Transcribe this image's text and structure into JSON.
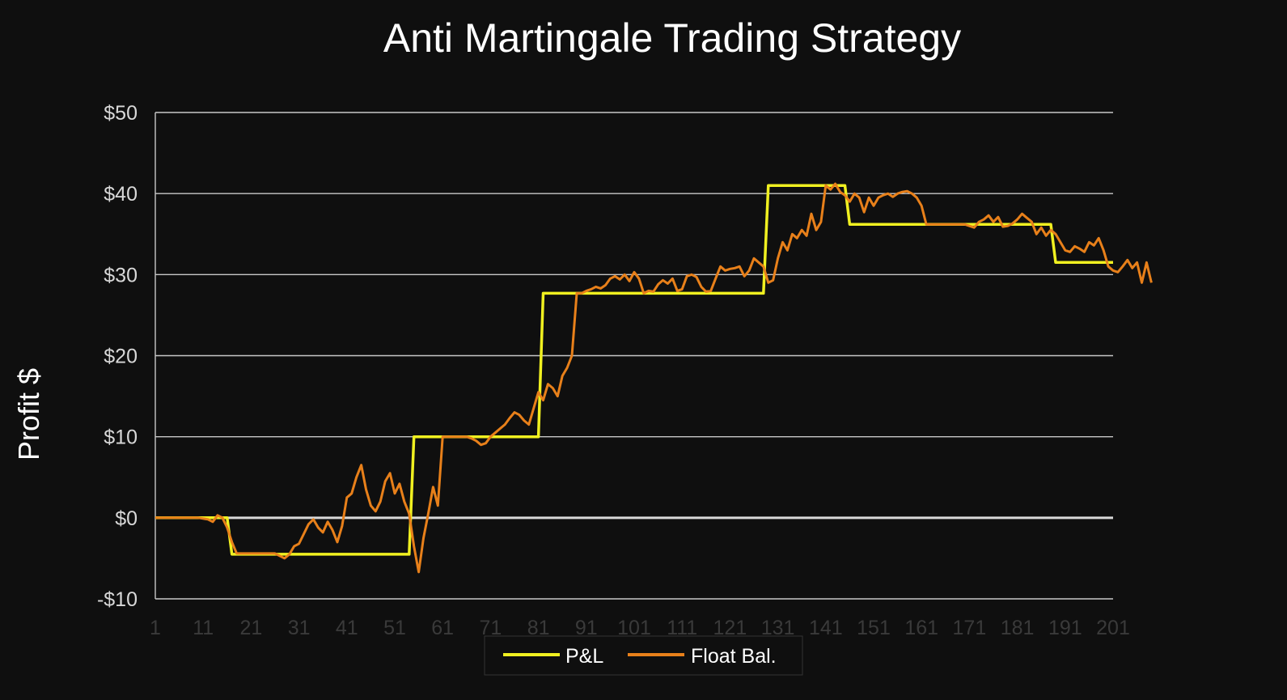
{
  "colors": {
    "background": "#0f0f0f",
    "gridline": "#c8c8c8",
    "zero_line": "#d9d9d9",
    "tick_label": "#d8d8d8",
    "negative_tick_label": "#ff0000",
    "x_tick_label": "#3a3a3a"
  },
  "chart_data": {
    "type": "line",
    "title": "Anti Martingale Trading Strategy",
    "xlabel": "",
    "ylabel": "Profit $",
    "xlim": [
      1,
      201
    ],
    "ylim": [
      -10,
      50
    ],
    "grid": true,
    "legend_position": "bottom-center",
    "y_ticks": [
      {
        "value": 50,
        "label": "$50",
        "negative": false
      },
      {
        "value": 40,
        "label": "$40",
        "negative": false
      },
      {
        "value": 30,
        "label": "$30",
        "negative": false
      },
      {
        "value": 20,
        "label": "$20",
        "negative": false
      },
      {
        "value": 10,
        "label": "$10",
        "negative": false
      },
      {
        "value": 0,
        "label": "$0",
        "negative": false
      },
      {
        "value": -10,
        "label": "-$10",
        "negative": true
      }
    ],
    "x_tick_labels": [
      "1",
      "11",
      "21",
      "31",
      "41",
      "51",
      "61",
      "71",
      "81",
      "91",
      "101",
      "111",
      "121",
      "131",
      "141",
      "151",
      "161",
      "171",
      "181",
      "191",
      "201"
    ],
    "series": [
      {
        "name": "P&L",
        "color": "#f0f020",
        "points": [
          [
            1,
            0
          ],
          [
            16,
            0
          ],
          [
            17,
            -4.5
          ],
          [
            54,
            -4.5
          ],
          [
            55,
            10
          ],
          [
            81,
            10
          ],
          [
            82,
            27.7
          ],
          [
            128,
            27.7
          ],
          [
            129,
            41
          ],
          [
            145,
            41
          ],
          [
            146,
            36.2
          ],
          [
            188,
            36.2
          ],
          [
            189,
            31.5
          ],
          [
            201,
            31.5
          ]
        ]
      },
      {
        "name": "Float Bal.",
        "color": "#e8801a",
        "points": [
          [
            1,
            0
          ],
          [
            4,
            0
          ],
          [
            7,
            0
          ],
          [
            10,
            0
          ],
          [
            12,
            -0.2
          ],
          [
            13,
            -0.5
          ],
          [
            14,
            0.3
          ],
          [
            15,
            0
          ],
          [
            16,
            -1.2
          ],
          [
            17,
            -3
          ],
          [
            18,
            -4.4
          ],
          [
            20,
            -4.4
          ],
          [
            23,
            -4.4
          ],
          [
            26,
            -4.4
          ],
          [
            27,
            -4.7
          ],
          [
            28,
            -5
          ],
          [
            29,
            -4.5
          ],
          [
            30,
            -3.5
          ],
          [
            31,
            -3.2
          ],
          [
            32,
            -2
          ],
          [
            33,
            -0.8
          ],
          [
            34,
            -0.2
          ],
          [
            35,
            -1.2
          ],
          [
            36,
            -1.8
          ],
          [
            37,
            -0.5
          ],
          [
            38,
            -1.5
          ],
          [
            39,
            -3
          ],
          [
            40,
            -1
          ],
          [
            41,
            2.5
          ],
          [
            42,
            3
          ],
          [
            43,
            5
          ],
          [
            44,
            6.5
          ],
          [
            45,
            3.5
          ],
          [
            46,
            1.5
          ],
          [
            47,
            0.8
          ],
          [
            48,
            2
          ],
          [
            49,
            4.5
          ],
          [
            50,
            5.5
          ],
          [
            51,
            3
          ],
          [
            52,
            4.2
          ],
          [
            53,
            2
          ],
          [
            54,
            0.5
          ],
          [
            55,
            -3.5
          ],
          [
            56,
            -6.7
          ],
          [
            57,
            -2.5
          ],
          [
            58,
            0.5
          ],
          [
            59,
            3.8
          ],
          [
            60,
            1.5
          ],
          [
            61,
            10
          ],
          [
            63,
            10
          ],
          [
            66,
            10
          ],
          [
            67,
            9.8
          ],
          [
            68,
            9.5
          ],
          [
            69,
            9
          ],
          [
            70,
            9.2
          ],
          [
            71,
            10
          ],
          [
            72,
            10.5
          ],
          [
            73,
            11
          ],
          [
            74,
            11.5
          ],
          [
            75,
            12.3
          ],
          [
            76,
            13
          ],
          [
            77,
            12.7
          ],
          [
            78,
            12
          ],
          [
            79,
            11.5
          ],
          [
            80,
            13.5
          ],
          [
            81,
            15.5
          ],
          [
            82,
            14.5
          ],
          [
            83,
            16.5
          ],
          [
            84,
            16
          ],
          [
            85,
            15
          ],
          [
            86,
            17.5
          ],
          [
            87,
            18.5
          ],
          [
            88,
            20
          ],
          [
            89,
            27.7
          ],
          [
            90,
            27.7
          ],
          [
            91,
            28
          ],
          [
            92,
            28.2
          ],
          [
            93,
            28.5
          ],
          [
            94,
            28.3
          ],
          [
            95,
            28.7
          ],
          [
            96,
            29.5
          ],
          [
            97,
            29.8
          ],
          [
            98,
            29.4
          ],
          [
            99,
            30
          ],
          [
            100,
            29.2
          ],
          [
            101,
            30.3
          ],
          [
            102,
            29.5
          ],
          [
            103,
            27.7
          ],
          [
            104,
            28
          ],
          [
            105,
            27.9
          ],
          [
            106,
            28.8
          ],
          [
            107,
            29.3
          ],
          [
            108,
            28.9
          ],
          [
            109,
            29.5
          ],
          [
            110,
            28
          ],
          [
            111,
            28.2
          ],
          [
            112,
            29.8
          ],
          [
            113,
            30
          ],
          [
            114,
            29.7
          ],
          [
            115,
            28.5
          ],
          [
            116,
            27.9
          ],
          [
            117,
            28
          ],
          [
            118,
            29.5
          ],
          [
            119,
            31
          ],
          [
            120,
            30.5
          ],
          [
            121,
            30.7
          ],
          [
            122,
            30.8
          ],
          [
            123,
            31
          ],
          [
            124,
            29.8
          ],
          [
            125,
            30.5
          ],
          [
            126,
            32
          ],
          [
            127,
            31.5
          ],
          [
            128,
            31
          ],
          [
            129,
            29
          ],
          [
            130,
            29.3
          ],
          [
            131,
            32
          ],
          [
            132,
            34
          ],
          [
            133,
            33
          ],
          [
            134,
            35
          ],
          [
            135,
            34.5
          ],
          [
            136,
            35.5
          ],
          [
            137,
            34.8
          ],
          [
            138,
            37.5
          ],
          [
            139,
            35.5
          ],
          [
            140,
            36.5
          ],
          [
            141,
            41
          ],
          [
            142,
            40.5
          ],
          [
            143,
            41.2
          ],
          [
            144,
            40.2
          ],
          [
            145,
            39.8
          ],
          [
            146,
            39
          ],
          [
            147,
            40
          ],
          [
            148,
            39.5
          ],
          [
            149,
            37.7
          ],
          [
            150,
            39.5
          ],
          [
            151,
            38.5
          ],
          [
            152,
            39.5
          ],
          [
            153,
            39.8
          ],
          [
            154,
            40
          ],
          [
            155,
            39.6
          ],
          [
            156,
            40
          ],
          [
            157,
            40.2
          ],
          [
            158,
            40.3
          ],
          [
            159,
            40
          ],
          [
            160,
            39.5
          ],
          [
            161,
            38.5
          ],
          [
            162,
            36.2
          ],
          [
            165,
            36.2
          ],
          [
            168,
            36.2
          ],
          [
            170,
            36.2
          ],
          [
            172,
            35.8
          ],
          [
            173,
            36.5
          ],
          [
            174,
            36.8
          ],
          [
            175,
            37.3
          ],
          [
            176,
            36.5
          ],
          [
            177,
            37.1
          ],
          [
            178,
            35.9
          ],
          [
            179,
            36
          ],
          [
            180,
            36.3
          ],
          [
            181,
            36.8
          ],
          [
            182,
            37.5
          ],
          [
            183,
            37
          ],
          [
            184,
            36.5
          ],
          [
            185,
            35
          ],
          [
            186,
            35.8
          ],
          [
            187,
            34.8
          ],
          [
            188,
            35.5
          ],
          [
            189,
            35
          ],
          [
            190,
            34
          ],
          [
            191,
            33
          ],
          [
            192,
            32.8
          ],
          [
            193,
            33.5
          ],
          [
            194,
            33.2
          ],
          [
            195,
            32.8
          ],
          [
            196,
            34
          ],
          [
            197,
            33.6
          ],
          [
            198,
            34.5
          ],
          [
            199,
            33
          ],
          [
            200,
            31
          ],
          [
            201,
            30.5
          ],
          [
            202,
            30.3
          ],
          [
            203,
            31
          ],
          [
            204,
            31.8
          ],
          [
            205,
            30.8
          ],
          [
            206,
            31.5
          ],
          [
            207,
            29
          ],
          [
            208,
            31.5
          ],
          [
            209,
            29
          ]
        ]
      }
    ]
  }
}
